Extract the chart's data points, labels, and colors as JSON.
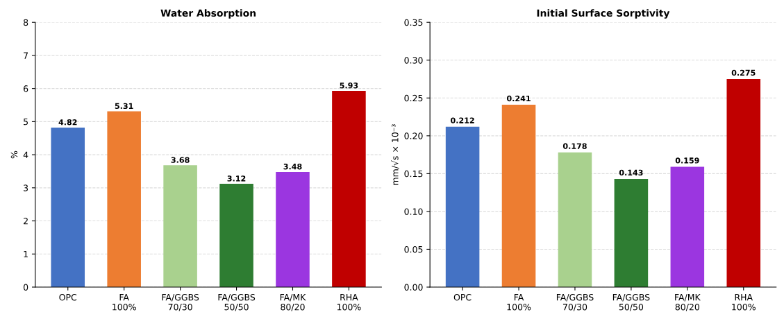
{
  "chart_data": [
    {
      "type": "bar",
      "title": "Water Absorption",
      "ylabel": "%",
      "categories": [
        "OPC",
        "FA\n100%",
        "FA/GGBS\n70/30",
        "FA/GGBS\n50/50",
        "FA/MK\n80/20",
        "RHA\n100%"
      ],
      "values": [
        4.82,
        5.31,
        3.68,
        3.12,
        3.48,
        5.93
      ],
      "colors": [
        "#4472c4",
        "#ed7d31",
        "#a9d18e",
        "#2e7d32",
        "#9b36e0",
        "#c00000"
      ],
      "ylim": [
        0,
        8
      ],
      "yticks": [
        0,
        1,
        2,
        3,
        4,
        5,
        6,
        7,
        8
      ],
      "grid": "y",
      "data_labels": true
    },
    {
      "type": "bar",
      "title": "Initial Surface Sorptivity",
      "ylabel": "mm/√s × 10⁻³",
      "categories": [
        "OPC",
        "FA\n100%",
        "FA/GGBS\n70/30",
        "FA/GGBS\n50/50",
        "FA/MK\n80/20",
        "RHA\n100%"
      ],
      "values": [
        0.212,
        0.241,
        0.178,
        0.143,
        0.159,
        0.275
      ],
      "colors": [
        "#4472c4",
        "#ed7d31",
        "#a9d18e",
        "#2e7d32",
        "#9b36e0",
        "#c00000"
      ],
      "ylim": [
        0,
        0.35
      ],
      "yticks": [
        {
          "value": 0,
          "label": "0.00"
        },
        {
          "value": 0.05,
          "label": "0.05"
        },
        {
          "value": 0.1,
          "label": "0.10"
        },
        {
          "value": 0.15,
          "label": "0.15"
        },
        {
          "value": 0.2,
          "label": "0.20"
        },
        {
          "value": 0.25,
          "label": "0.25"
        },
        {
          "value": 0.3,
          "label": "0.30"
        },
        {
          "value": 0.35,
          "label": "0.35"
        }
      ],
      "grid": "y",
      "data_labels": true
    }
  ]
}
